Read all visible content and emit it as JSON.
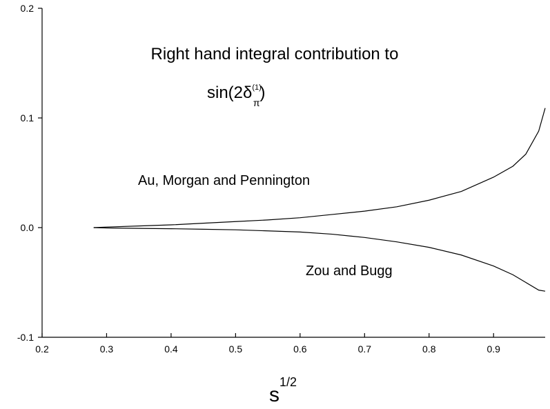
{
  "chart_data": {
    "type": "line",
    "title": "Right hand integral contribution to",
    "title_formula": [
      "sin(2δ",
      "(1)",
      "π",
      ")"
    ],
    "xlabel": [
      "s",
      "1/2"
    ],
    "x": [
      0.28,
      0.3,
      0.35,
      0.4,
      0.45,
      0.5,
      0.55,
      0.6,
      0.65,
      0.7,
      0.75,
      0.8,
      0.85,
      0.9,
      0.93,
      0.95,
      0.97,
      0.98
    ],
    "series": [
      {
        "name": "Au, Morgan and Pennington",
        "color": "#000000",
        "values": [
          0,
          0.0005,
          0.0015,
          0.0025,
          0.004,
          0.0055,
          0.007,
          0.009,
          0.012,
          0.015,
          0.019,
          0.025,
          0.033,
          0.046,
          0.056,
          0.067,
          0.088,
          0.109
        ]
      },
      {
        "name": "Zou and Bugg",
        "color": "#000000",
        "values": [
          0,
          -0.0003,
          -0.0007,
          -0.001,
          -0.0015,
          -0.002,
          -0.003,
          -0.004,
          -0.006,
          -0.009,
          -0.013,
          -0.018,
          -0.025,
          -0.035,
          -0.043,
          -0.05,
          -0.057,
          -0.058
        ]
      }
    ],
    "xlim": [
      0.2,
      0.98
    ],
    "ylim": [
      -0.1,
      0.2
    ],
    "xticks": [
      0.2,
      0.3,
      0.4,
      0.5,
      0.6,
      0.7,
      0.8,
      0.9
    ],
    "yticks": [
      -0.1,
      {
        "value": 0,
        "label": "0.0"
      },
      0.1,
      0.2
    ],
    "grid": false
  }
}
